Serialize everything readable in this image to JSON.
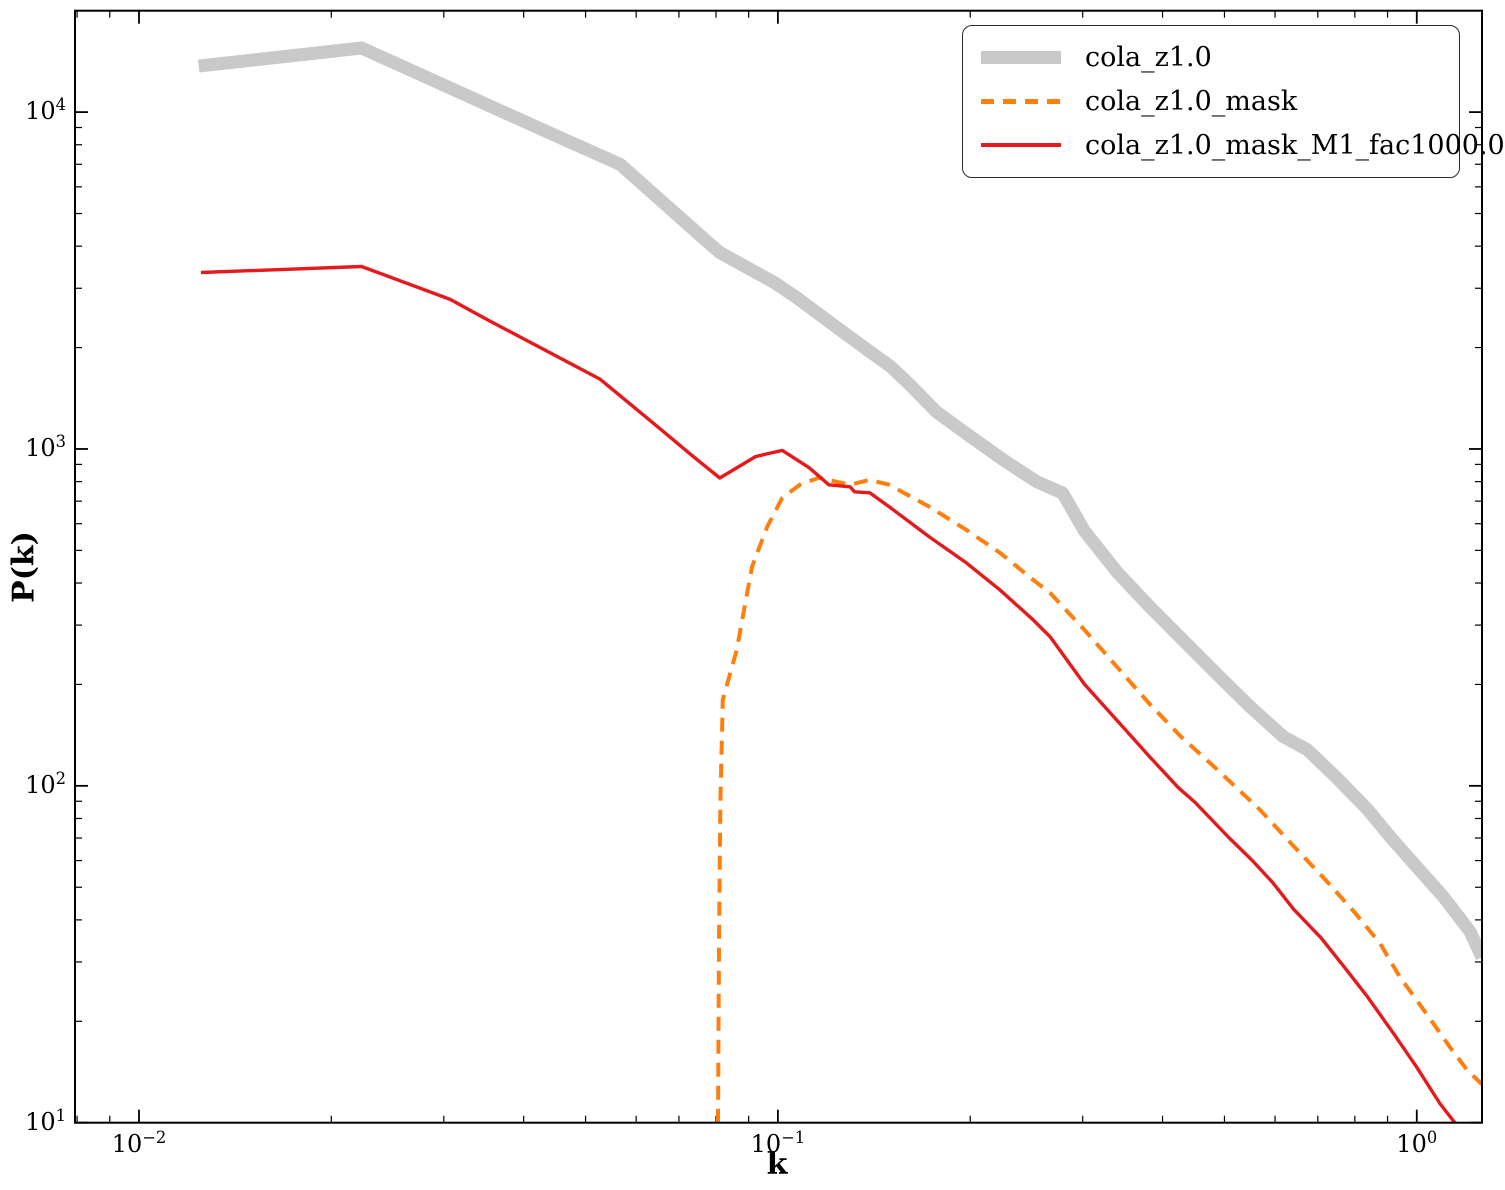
{
  "figure": {
    "background": "#ffffff",
    "axis_color": "#000000"
  },
  "legend": {
    "position": "upper right",
    "entries": [
      {
        "label": "cola_z1.0",
        "color": "#c9c9c9",
        "style": "solid-thick"
      },
      {
        "label": "cola_z1.0_mask",
        "color": "#ff7f0e",
        "style": "dashed"
      },
      {
        "label": "cola_z1.0_mask_M1_fac1000.0",
        "color": "#e41a1c",
        "style": "solid"
      }
    ]
  },
  "chart_data": {
    "type": "line",
    "title": "",
    "xlabel": "k",
    "ylabel": "P(k)",
    "x_scale": "log",
    "y_scale": "log",
    "xlim": [
      0.00794,
      1.265
    ],
    "ylim": [
      10,
      20000
    ],
    "grid": false,
    "legend_position": "upper right",
    "x_ticks": [
      {
        "value": 0.01,
        "base": "10",
        "exp": "−2"
      },
      {
        "value": 0.1,
        "base": "10",
        "exp": "−1"
      },
      {
        "value": 1.0,
        "base": "10",
        "exp": "0"
      }
    ],
    "y_ticks": [
      {
        "value": 10000,
        "base": "10",
        "exp": "4"
      },
      {
        "value": 1000,
        "base": "10",
        "exp": "3"
      },
      {
        "value": 100,
        "base": "10",
        "exp": "2"
      },
      {
        "value": 10,
        "base": "10",
        "exp": "1"
      }
    ],
    "series": [
      {
        "name": "cola_z1.0",
        "color": "#c9c9c9",
        "line_style": "solid",
        "line_width": 13,
        "points": [
          [
            0.0124,
            13700
          ],
          [
            0.0223,
            15500
          ],
          [
            0.0456,
            8400
          ],
          [
            0.0566,
            7000
          ],
          [
            0.0778,
            4100
          ],
          [
            0.0811,
            3830
          ],
          [
            0.099,
            3110
          ],
          [
            0.108,
            2780
          ],
          [
            0.125,
            2260
          ],
          [
            0.139,
            1950
          ],
          [
            0.15,
            1760
          ],
          [
            0.161,
            1550
          ],
          [
            0.177,
            1290
          ],
          [
            0.2,
            1090
          ],
          [
            0.225,
            930
          ],
          [
            0.254,
            800
          ],
          [
            0.279,
            740
          ],
          [
            0.302,
            570
          ],
          [
            0.34,
            430
          ],
          [
            0.382,
            340
          ],
          [
            0.486,
            215
          ],
          [
            0.548,
            172
          ],
          [
            0.618,
            140
          ],
          [
            0.674,
            128
          ],
          [
            0.748,
            106
          ],
          [
            0.838,
            85
          ],
          [
            0.918,
            69
          ],
          [
            1.012,
            56
          ],
          [
            1.099,
            47
          ],
          [
            1.211,
            37
          ],
          [
            1.265,
            31
          ]
        ]
      },
      {
        "name": "cola_z1.0_mask",
        "color": "#ff7f0e",
        "line_style": "dashed",
        "line_width": 4,
        "points": [
          [
            0.0806,
            10
          ],
          [
            0.0809,
            37
          ],
          [
            0.0813,
            90
          ],
          [
            0.082,
            180
          ],
          [
            0.0862,
            253
          ],
          [
            0.0911,
            447
          ],
          [
            0.0962,
            587
          ],
          [
            0.1016,
            716
          ],
          [
            0.1082,
            783
          ],
          [
            0.1159,
            821
          ],
          [
            0.1297,
            783
          ],
          [
            0.1392,
            810
          ],
          [
            0.1494,
            783
          ],
          [
            0.1727,
            673
          ],
          [
            0.1973,
            575
          ],
          [
            0.2225,
            492
          ],
          [
            0.2509,
            409
          ],
          [
            0.2667,
            374
          ],
          [
            0.302,
            290
          ],
          [
            0.3818,
            175
          ],
          [
            0.4273,
            140
          ],
          [
            0.4866,
            112
          ],
          [
            0.568,
            85
          ],
          [
            0.6332,
            68
          ],
          [
            0.7203,
            52.5
          ],
          [
            0.8,
            42
          ],
          [
            0.8766,
            34
          ],
          [
            0.9418,
            27
          ],
          [
            1.0367,
            21
          ],
          [
            1.1259,
            16.8
          ],
          [
            1.2,
            14.3
          ],
          [
            1.265,
            13
          ]
        ]
      },
      {
        "name": "cola_z1.0_mask_M1_fac1000.0",
        "color": "#e41a1c",
        "line_style": "solid",
        "line_width": 3.4,
        "points": [
          [
            0.0125,
            3340
          ],
          [
            0.0223,
            3480
          ],
          [
            0.0307,
            2780
          ],
          [
            0.0351,
            2420
          ],
          [
            0.0527,
            1610
          ],
          [
            0.0657,
            1140
          ],
          [
            0.0732,
            960
          ],
          [
            0.0811,
            820
          ],
          [
            0.0923,
            950
          ],
          [
            0.1016,
            990
          ],
          [
            0.1119,
            880
          ],
          [
            0.1202,
            783
          ],
          [
            0.1297,
            772
          ],
          [
            0.1318,
            746
          ],
          [
            0.1392,
            741
          ],
          [
            0.1494,
            673
          ],
          [
            0.1727,
            548
          ],
          [
            0.1973,
            459
          ],
          [
            0.2225,
            382
          ],
          [
            0.2509,
            311
          ],
          [
            0.2667,
            277
          ],
          [
            0.302,
            200
          ],
          [
            0.3818,
            122
          ],
          [
            0.423,
            99
          ],
          [
            0.4507,
            89
          ],
          [
            0.5069,
            70.5
          ],
          [
            0.5529,
            60
          ],
          [
            0.5956,
            51.5
          ],
          [
            0.6418,
            43
          ],
          [
            0.7088,
            35.3
          ],
          [
            0.7698,
            29
          ],
          [
            0.8378,
            23.6
          ],
          [
            0.918,
            18.5
          ],
          [
            1.0,
            14.6
          ],
          [
            1.087,
            11.4
          ],
          [
            1.147,
            10
          ]
        ]
      }
    ]
  }
}
